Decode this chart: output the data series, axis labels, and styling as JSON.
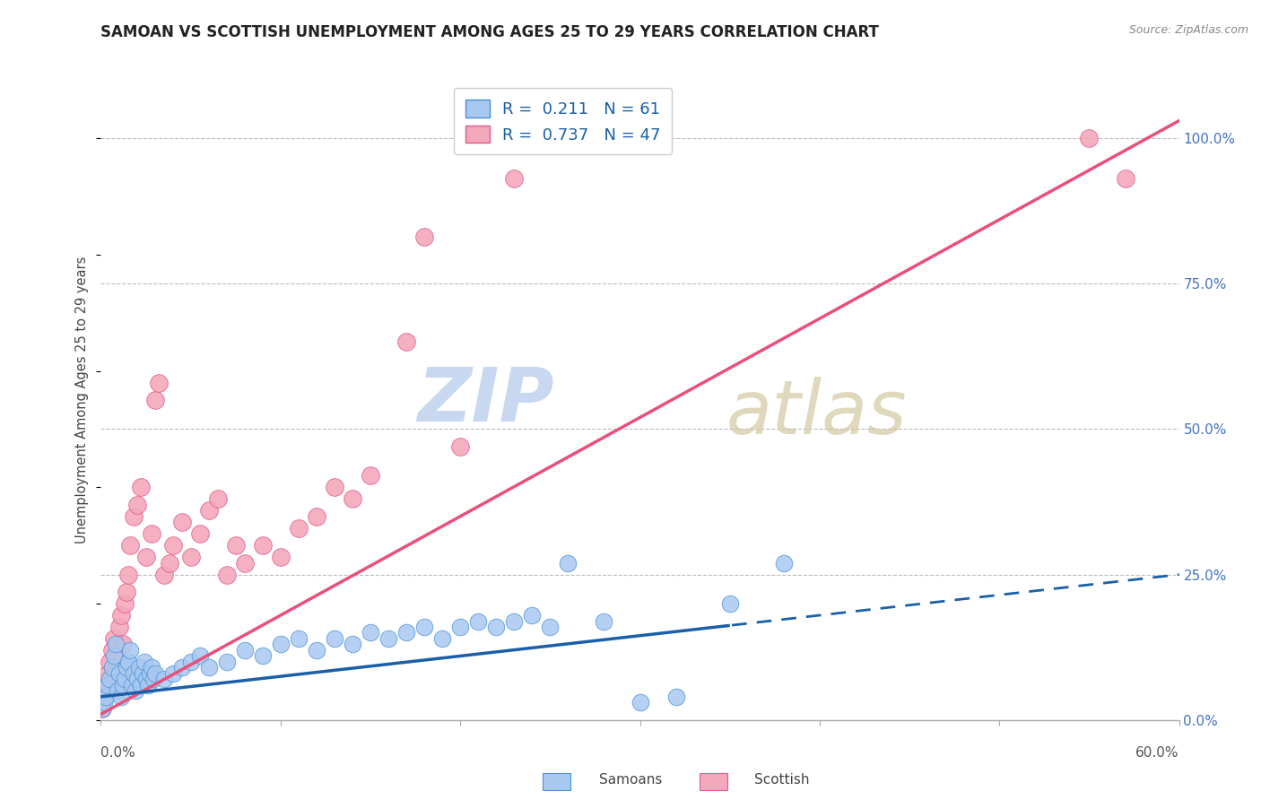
{
  "title": "SAMOAN VS SCOTTISH UNEMPLOYMENT AMONG AGES 25 TO 29 YEARS CORRELATION CHART",
  "source": "Source: ZipAtlas.com",
  "ylabel": "Unemployment Among Ages 25 to 29 years",
  "ylabel_right_ticks": [
    "0.0%",
    "25.0%",
    "50.0%",
    "75.0%",
    "100.0%"
  ],
  "ylabel_right_vals": [
    0,
    0.25,
    0.5,
    0.75,
    1.0
  ],
  "xmin": 0.0,
  "xmax": 0.6,
  "ymin": 0.0,
  "ymax": 1.1,
  "samoans_R": 0.211,
  "samoans_N": 61,
  "scottish_R": 0.737,
  "scottish_N": 47,
  "samoans_color": "#A8C8F0",
  "scottish_color": "#F4A8BC",
  "samoans_edge_color": "#4A90D9",
  "scottish_edge_color": "#E05A8A",
  "samoans_line_color": "#1A5FA8",
  "scottish_line_color": "#E8507A",
  "watermark_zip": "ZIP",
  "watermark_atlas": "atlas",
  "watermark_color": "#C8D8F0",
  "samoans_line_solid_end": 0.35,
  "scottish_line_solid_end": 0.6,
  "samoans_x": [
    0.001,
    0.002,
    0.003,
    0.004,
    0.005,
    0.006,
    0.007,
    0.008,
    0.009,
    0.01,
    0.011,
    0.012,
    0.013,
    0.014,
    0.015,
    0.016,
    0.017,
    0.018,
    0.019,
    0.02,
    0.021,
    0.022,
    0.023,
    0.024,
    0.025,
    0.026,
    0.027,
    0.028,
    0.029,
    0.03,
    0.035,
    0.04,
    0.045,
    0.05,
    0.055,
    0.06,
    0.07,
    0.08,
    0.09,
    0.1,
    0.11,
    0.12,
    0.13,
    0.14,
    0.15,
    0.16,
    0.17,
    0.18,
    0.19,
    0.2,
    0.21,
    0.22,
    0.23,
    0.24,
    0.25,
    0.26,
    0.28,
    0.3,
    0.32,
    0.35,
    0.38
  ],
  "samoans_y": [
    0.02,
    0.03,
    0.04,
    0.06,
    0.07,
    0.09,
    0.11,
    0.13,
    0.05,
    0.08,
    0.04,
    0.06,
    0.07,
    0.09,
    0.1,
    0.12,
    0.06,
    0.08,
    0.05,
    0.07,
    0.09,
    0.06,
    0.08,
    0.1,
    0.07,
    0.06,
    0.08,
    0.09,
    0.07,
    0.08,
    0.07,
    0.08,
    0.09,
    0.1,
    0.11,
    0.09,
    0.1,
    0.12,
    0.11,
    0.13,
    0.14,
    0.12,
    0.14,
    0.13,
    0.15,
    0.14,
    0.15,
    0.16,
    0.14,
    0.16,
    0.17,
    0.16,
    0.17,
    0.18,
    0.16,
    0.27,
    0.17,
    0.03,
    0.04,
    0.2,
    0.27
  ],
  "scottish_x": [
    0.001,
    0.002,
    0.003,
    0.004,
    0.005,
    0.006,
    0.007,
    0.008,
    0.009,
    0.01,
    0.011,
    0.012,
    0.013,
    0.014,
    0.015,
    0.016,
    0.018,
    0.02,
    0.022,
    0.025,
    0.028,
    0.03,
    0.032,
    0.035,
    0.038,
    0.04,
    0.045,
    0.05,
    0.055,
    0.06,
    0.065,
    0.07,
    0.075,
    0.08,
    0.09,
    0.1,
    0.11,
    0.12,
    0.13,
    0.14,
    0.15,
    0.17,
    0.18,
    0.2,
    0.23,
    0.55,
    0.57
  ],
  "scottish_y": [
    0.02,
    0.04,
    0.06,
    0.08,
    0.1,
    0.12,
    0.14,
    0.09,
    0.11,
    0.16,
    0.18,
    0.13,
    0.2,
    0.22,
    0.25,
    0.3,
    0.35,
    0.37,
    0.4,
    0.28,
    0.32,
    0.55,
    0.58,
    0.25,
    0.27,
    0.3,
    0.34,
    0.28,
    0.32,
    0.36,
    0.38,
    0.25,
    0.3,
    0.27,
    0.3,
    0.28,
    0.33,
    0.35,
    0.4,
    0.38,
    0.42,
    0.65,
    0.83,
    0.47,
    0.93,
    1.0,
    0.93
  ]
}
